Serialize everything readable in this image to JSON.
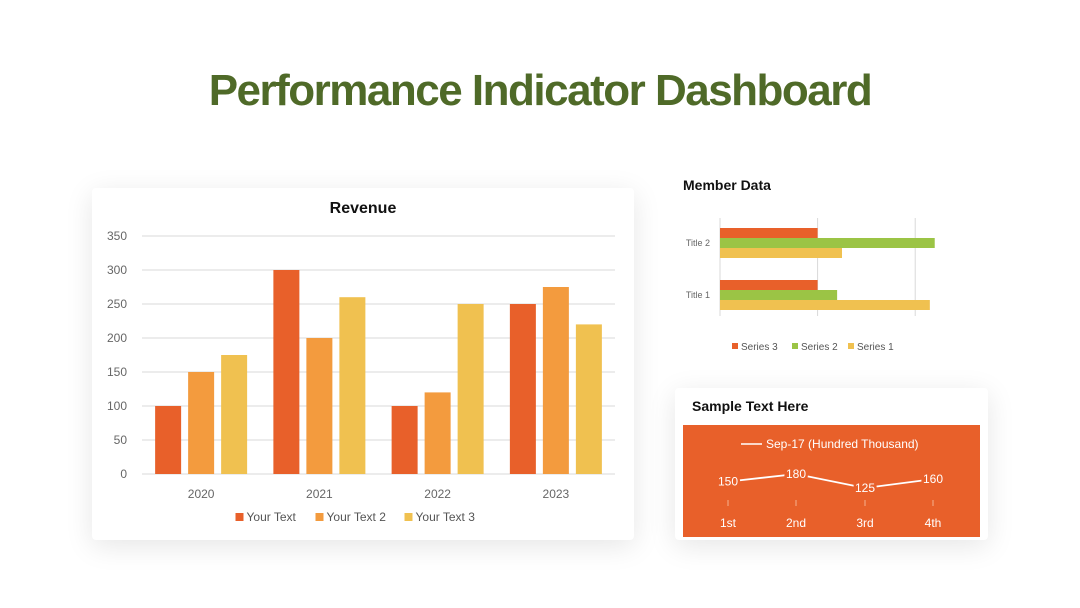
{
  "page": {
    "title": "Performance Indicator Dashboard"
  },
  "colors": {
    "orange": "#e8602a",
    "amber": "#f39b3e",
    "gold": "#f0c150",
    "green": "#9bc445",
    "title_green": "#4f6a28"
  },
  "chart_data": [
    {
      "type": "bar",
      "title": "Revenue",
      "categories": [
        "2020",
        "2021",
        "2022",
        "2023"
      ],
      "series": [
        {
          "name": "Your Text",
          "values": [
            100,
            300,
            100,
            250
          ],
          "color": "#e8602a"
        },
        {
          "name": "Your Text 2",
          "values": [
            150,
            200,
            120,
            275
          ],
          "color": "#f39b3e"
        },
        {
          "name": "Your Text 3",
          "values": [
            175,
            260,
            250,
            220
          ],
          "color": "#f0c150"
        }
      ],
      "ylim": [
        0,
        350
      ],
      "yticks": [
        "0",
        "50",
        "100",
        "150",
        "200",
        "250",
        "300",
        "350"
      ],
      "grid": true,
      "legend": "bottom"
    },
    {
      "type": "bar",
      "orientation": "horizontal",
      "title": "Member Data",
      "categories": [
        "Title 1",
        "Title 2"
      ],
      "series": [
        {
          "name": "Series 1",
          "values": [
            4.3,
            2.5
          ],
          "color": "#f0c150"
        },
        {
          "name": "Series 2",
          "values": [
            2.4,
            4.4
          ],
          "color": "#9bc445"
        },
        {
          "name": "Series 3",
          "values": [
            2.0,
            2.0
          ],
          "color": "#e8602a"
        }
      ],
      "xlim": [
        0,
        5
      ],
      "grid": true,
      "legend": "bottom"
    },
    {
      "type": "line",
      "title": "Sample Text Here",
      "categories": [
        "1st",
        "2nd",
        "3rd",
        "4th"
      ],
      "series": [
        {
          "name": "Sep-17 (Hundred Thousand)",
          "values": [
            150,
            180,
            125,
            160
          ],
          "color": "#ffffff"
        }
      ],
      "data_labels": [
        "150",
        "180",
        "125",
        "160"
      ],
      "legend": "top"
    }
  ]
}
